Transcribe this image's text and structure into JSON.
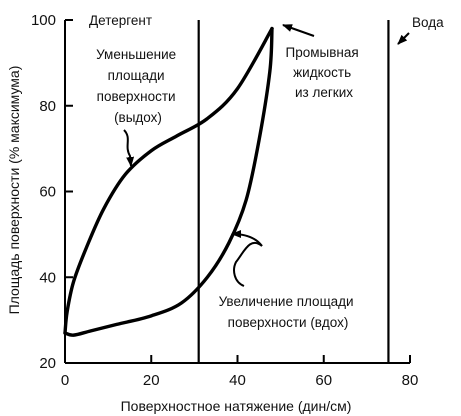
{
  "chart_data": {
    "type": "line",
    "xlabel": "Поверхностное натяжение (дин/см)",
    "ylabel": "Площадь поверхности (% максимума)",
    "xlim": [
      0,
      80
    ],
    "ylim": [
      20,
      100
    ],
    "x_ticks": [
      "0",
      "20",
      "40",
      "60",
      "80"
    ],
    "y_ticks": [
      "20",
      "40",
      "60",
      "80",
      "100"
    ],
    "grid": false,
    "legend": "none",
    "series": [
      {
        "points": [
          [
            48,
            98
          ],
          [
            40,
            84
          ],
          [
            33,
            77
          ],
          [
            26,
            73
          ],
          [
            20,
            69.5
          ],
          [
            14,
            64
          ],
          [
            9,
            56
          ],
          [
            5,
            47
          ],
          [
            2,
            39
          ],
          [
            0.5,
            32
          ],
          [
            0,
            27
          ]
        ],
        "color": "#000000"
      },
      {
        "points": [
          [
            0,
            27
          ],
          [
            2,
            26.5
          ],
          [
            6,
            27.5
          ],
          [
            12,
            29
          ],
          [
            20,
            31
          ],
          [
            27,
            34
          ],
          [
            33,
            40
          ],
          [
            38,
            48
          ],
          [
            42,
            58
          ],
          [
            45,
            72
          ],
          [
            47.5,
            88
          ],
          [
            48,
            98
          ]
        ],
        "color": "#000000"
      }
    ],
    "reference_lines": [
      {
        "x": 31,
        "label": "Детергент"
      },
      {
        "x": 75,
        "label": "Вода"
      }
    ],
    "annotations": [
      {
        "text": [
          "Уменьшение",
          "площади",
          "поверхности",
          "(выдох)"
        ]
      },
      {
        "text": [
          "Промывная",
          "жидкость",
          "из легких"
        ]
      },
      {
        "text": [
          "Увеличение площади",
          "поверхности (вдох)"
        ]
      }
    ]
  }
}
